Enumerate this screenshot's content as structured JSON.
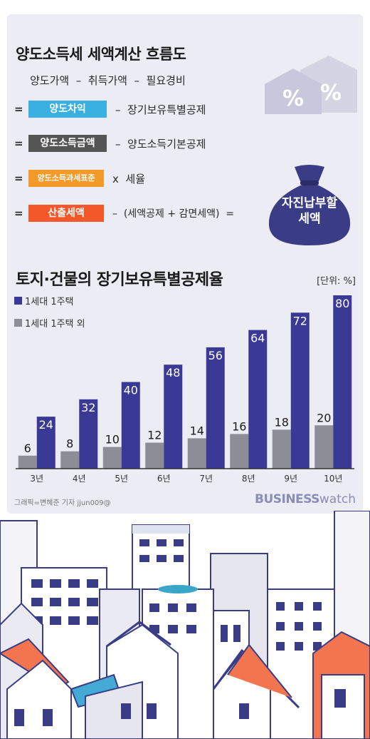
{
  "flow": {
    "title": "양도소득세 세액계산 흐름도",
    "row1": "양도가액  –  취득가액  –  필요경비",
    "rows": [
      {
        "eq": "=",
        "tag": "양도차익",
        "color": "#3ab0e2",
        "rest": "–  장기보유특별공제"
      },
      {
        "eq": "=",
        "tag": "양도소득금액",
        "color": "#555555",
        "rest": "–  양도소득기본공제"
      },
      {
        "eq": "=",
        "tag": "양도소득과세표준",
        "color": "#f49a28",
        "rest": "x  세율"
      },
      {
        "eq": "=",
        "tag": "산출세액",
        "color": "#f2582a",
        "rest": "–  (세액공제 + 감면세액)  ="
      }
    ],
    "result_line1": "자진납부할",
    "result_line2": "세액",
    "result_color": "#3a3d86"
  },
  "brand": {
    "bold": "BUSINESS",
    "light": "watch"
  },
  "credit": "그래픽=변혜준 기자 jjun009@",
  "chart_data": {
    "type": "bar",
    "title": "토지·건물의 장기보유특별공제율",
    "unit": "[단위: %]",
    "categories": [
      "3년",
      "4년",
      "5년",
      "6년",
      "7년",
      "8년",
      "9년",
      "10년"
    ],
    "series": [
      {
        "name": "1세대 1주택 외",
        "color": "#8d8d97",
        "values": [
          6,
          8,
          10,
          12,
          14,
          16,
          18,
          20
        ]
      },
      {
        "name": "1세대 1주택",
        "color": "#3a3a96",
        "values": [
          24,
          32,
          40,
          48,
          56,
          64,
          72,
          80
        ]
      }
    ],
    "ylim": [
      0,
      80
    ],
    "legend_position": "top-left"
  }
}
